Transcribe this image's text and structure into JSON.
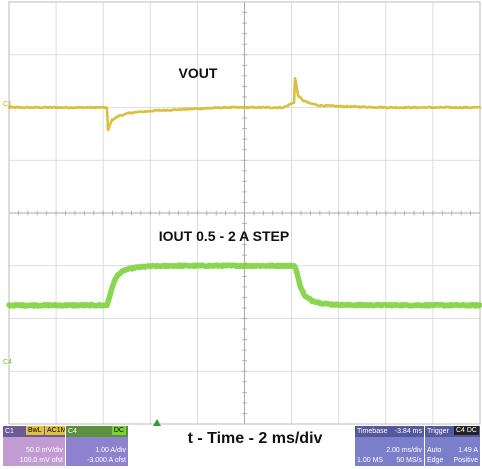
{
  "chart_data": {
    "type": "line",
    "title": "",
    "xlabel": "t - Time - 2 ms/div",
    "ylabel": "",
    "grid": true,
    "time_per_div_ms": 2,
    "divisions": {
      "x": 10,
      "y": 8
    },
    "xlim_ms": [
      -8.16,
      11.84
    ],
    "panels": [
      {
        "name": "VOUT",
        "label": "VOUT",
        "channel": "C1",
        "color": "#d6b92a",
        "units": "mV",
        "volts_per_div": "50.0 mV/div",
        "ylim": [
          -100,
          100
        ],
        "x_ms": [
          -8.16,
          -4.3,
          -4.0,
          -3.96,
          -3.8,
          -3.5,
          -3.0,
          -2.0,
          -1.0,
          0.0,
          1.0,
          2.0,
          3.5,
          3.96,
          4.0,
          4.02,
          4.1,
          4.3,
          4.6,
          5.0,
          6.0,
          8.0,
          11.84
        ],
        "y_mV": [
          0,
          0,
          0,
          -22,
          -12,
          -8,
          -5,
          -3,
          -2,
          -1,
          0,
          0,
          0,
          5,
          42,
          25,
          12,
          7,
          4,
          2,
          1,
          0,
          0
        ]
      },
      {
        "name": "IOUT",
        "label": "IOUT 0.5 - 2 A STEP",
        "channel": "C4",
        "color": "#7dd23c",
        "units": "A",
        "amps_per_div": "1.00 A/div",
        "ylim": [
          -4,
          4
        ],
        "x_ms": [
          -8.16,
          -4.0,
          -3.9,
          -3.7,
          -3.5,
          -3.2,
          -2.8,
          -2.2,
          -1.0,
          3.96,
          4.0,
          4.2,
          4.4,
          4.7,
          5.1,
          5.6,
          6.3,
          11.84
        ],
        "y_A": [
          0.5,
          0.5,
          0.8,
          1.4,
          1.7,
          1.85,
          1.93,
          1.98,
          2.0,
          2.0,
          1.95,
          1.25,
          0.85,
          0.68,
          0.58,
          0.53,
          0.51,
          0.5
        ]
      }
    ]
  },
  "scope_info": {
    "ch1": {
      "name": "C1",
      "badge1": "BwL",
      "badge2": "AC1M",
      "scale": "50.0 mV/div",
      "offset": "100.0 mV ofst",
      "color": "#d6b92a"
    },
    "ch4": {
      "name": "C4",
      "badge": "DC",
      "scale": "1.00 A/div",
      "offset": "-3.000 A ofst",
      "color": "#7dd23c"
    },
    "timebase": {
      "label": "Timebase",
      "delay": "-3.84 ms",
      "tdiv": "2.00 ms/div",
      "samples": "1.00 MS",
      "rate": "50 MS/s"
    },
    "trigger": {
      "label": "Trigger",
      "badge": "C4 DC",
      "mode": "Auto",
      "level": "1.49 A",
      "type": "Edge",
      "slope": "Positive"
    }
  }
}
